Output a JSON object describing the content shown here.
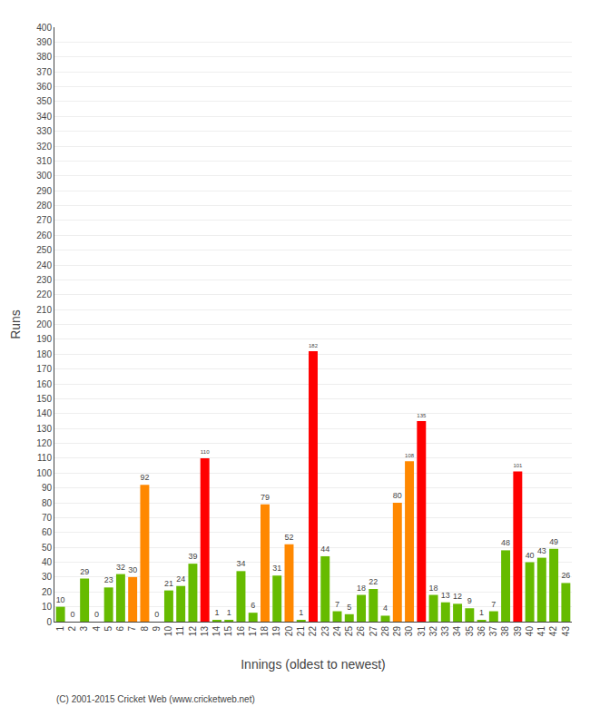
{
  "chart_data": {
    "type": "bar",
    "xlabel": "Innings (oldest to newest)",
    "ylabel": "Runs",
    "categories": [
      "1",
      "2",
      "3",
      "4",
      "5",
      "6",
      "7",
      "8",
      "9",
      "10",
      "11",
      "12",
      "13",
      "14",
      "15",
      "16",
      "17",
      "18",
      "19",
      "20",
      "21",
      "22",
      "23",
      "24",
      "25",
      "26",
      "27",
      "28",
      "29",
      "30",
      "31",
      "32",
      "33",
      "34",
      "35",
      "36",
      "37",
      "38",
      "39",
      "40",
      "41",
      "42",
      "43"
    ],
    "values": [
      10,
      0,
      29,
      0,
      23,
      32,
      30,
      92,
      0,
      21,
      24,
      39,
      110,
      1,
      1,
      34,
      6,
      79,
      31,
      52,
      1,
      182,
      44,
      7,
      5,
      18,
      22,
      4,
      80,
      108,
      135,
      18,
      13,
      12,
      9,
      1,
      7,
      48,
      101,
      40,
      43,
      49,
      26
    ],
    "colors": [
      "#66bb00",
      "#66bb00",
      "#66bb00",
      "#66bb00",
      "#66bb00",
      "#66bb00",
      "#ff8800",
      "#ff8800",
      "#66bb00",
      "#66bb00",
      "#66bb00",
      "#66bb00",
      "#ff0000",
      "#66bb00",
      "#66bb00",
      "#66bb00",
      "#66bb00",
      "#ff8800",
      "#66bb00",
      "#ff8800",
      "#66bb00",
      "#ff0000",
      "#66bb00",
      "#66bb00",
      "#66bb00",
      "#66bb00",
      "#66bb00",
      "#66bb00",
      "#ff8800",
      "#ff8800",
      "#ff0000",
      "#66bb00",
      "#66bb00",
      "#66bb00",
      "#66bb00",
      "#66bb00",
      "#66bb00",
      "#66bb00",
      "#ff0000",
      "#66bb00",
      "#66bb00",
      "#66bb00",
      "#66bb00"
    ],
    "ylim": [
      0,
      400
    ],
    "yticks": [
      0,
      10,
      20,
      30,
      40,
      50,
      60,
      70,
      80,
      90,
      100,
      110,
      120,
      130,
      140,
      150,
      160,
      170,
      180,
      190,
      200,
      210,
      220,
      230,
      240,
      250,
      260,
      270,
      280,
      290,
      300,
      310,
      320,
      330,
      340,
      350,
      360,
      370,
      380,
      390,
      400
    ],
    "grid": true,
    "data_labels": true,
    "annotations": [
      "(C) 2001-2015 Cricket Web (www.cricketweb.net)"
    ]
  }
}
